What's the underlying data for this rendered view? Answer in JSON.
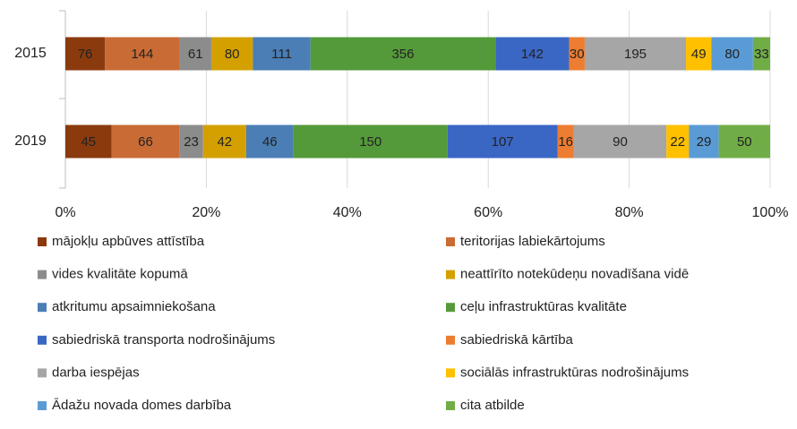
{
  "chart_data": {
    "type": "bar",
    "orientation": "horizontal",
    "stacking": "percent",
    "categories": [
      "2015",
      "2019"
    ],
    "series": [
      {
        "name": "mājokļu apbūves attīstība",
        "color": "#8b3a0e",
        "values": [
          76,
          45
        ]
      },
      {
        "name": "teritorijas labiekārtojums",
        "color": "#c86b35",
        "values": [
          144,
          66
        ]
      },
      {
        "name": "vides kvalitāte kopumā",
        "color": "#8c8c8c",
        "values": [
          61,
          23
        ]
      },
      {
        "name": "neattīrīto notekūdeņu novadīšana vidē",
        "color": "#d4a000",
        "values": [
          80,
          42
        ]
      },
      {
        "name": "atkritumu apsaimniekošana",
        "color": "#4a7eb5",
        "values": [
          111,
          46
        ]
      },
      {
        "name": "ceļu infrastruktūras kvalitāte",
        "color": "#559a3a",
        "values": [
          356,
          150
        ]
      },
      {
        "name": "sabiedriskā transporta nodrošinājums",
        "color": "#3a67c4",
        "values": [
          142,
          107
        ]
      },
      {
        "name": "sabiedriskā kārtība",
        "color": "#ed7d31",
        "values": [
          30,
          16
        ]
      },
      {
        "name": "darba iespējas",
        "color": "#a6a6a6",
        "values": [
          195,
          90
        ]
      },
      {
        "name": "sociālās infrastruktūras nodrošinājums",
        "color": "#ffc000",
        "values": [
          49,
          22
        ]
      },
      {
        "name": "Ādažu novada domes darbība",
        "color": "#5b9bd5",
        "values": [
          80,
          29
        ]
      },
      {
        "name": "cita atbilde",
        "color": "#70ad47",
        "values": [
          33,
          50
        ]
      }
    ],
    "xlim": [
      0,
      100
    ],
    "xticks": [
      {
        "value": 0,
        "label": "0%"
      },
      {
        "value": 20,
        "label": "20%"
      },
      {
        "value": 40,
        "label": "40%"
      },
      {
        "value": 60,
        "label": "60%"
      },
      {
        "value": 80,
        "label": "80%"
      },
      {
        "value": 100,
        "label": "100%"
      }
    ],
    "grid": true,
    "legend": "bottom"
  }
}
